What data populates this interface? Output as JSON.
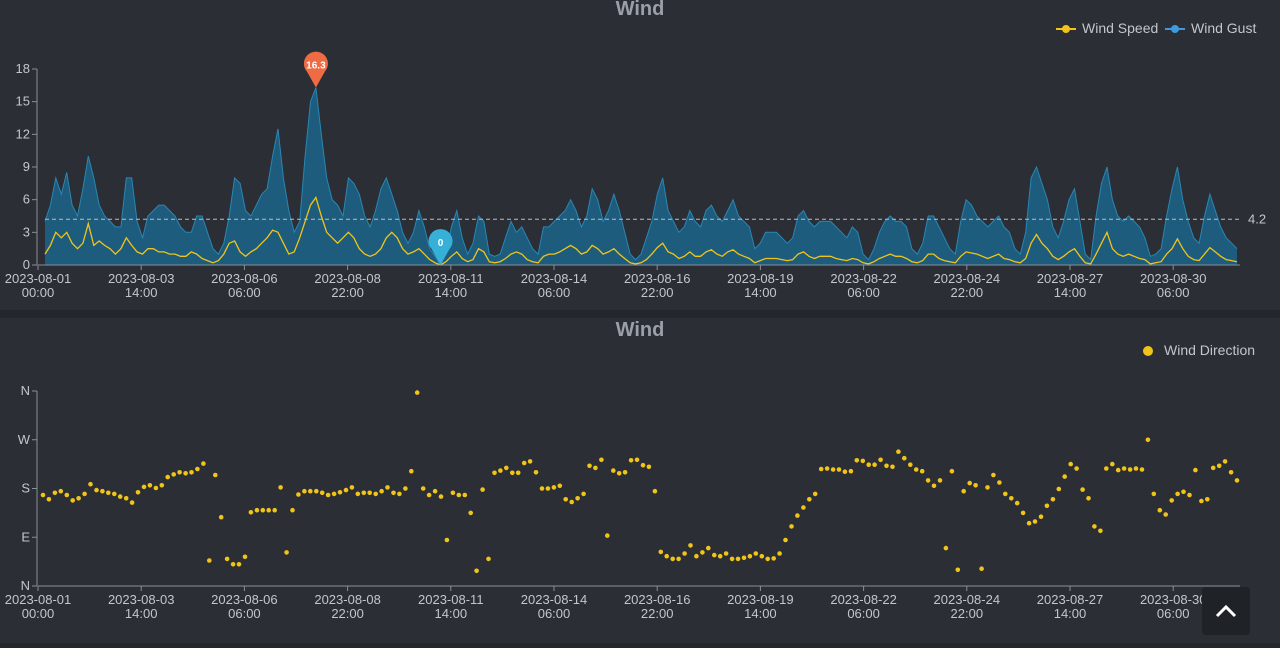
{
  "chart_data": [
    {
      "type": "area",
      "title": "Wind",
      "legend": [
        "Wind Speed",
        "Wind Gust"
      ],
      "legend_placement": "top-right",
      "ylim": [
        0,
        18
      ],
      "yticks": [
        0,
        3,
        6,
        9,
        12,
        15,
        18
      ],
      "xticks": [
        [
          "2023-08-01",
          "00:00"
        ],
        [
          "2023-08-03",
          "14:00"
        ],
        [
          "2023-08-06",
          "06:00"
        ],
        [
          "2023-08-08",
          "22:00"
        ],
        [
          "2023-08-11",
          "14:00"
        ],
        [
          "2023-08-14",
          "06:00"
        ],
        [
          "2023-08-16",
          "22:00"
        ],
        [
          "2023-08-19",
          "14:00"
        ],
        [
          "2023-08-22",
          "06:00"
        ],
        [
          "2023-08-24",
          "22:00"
        ],
        [
          "2023-08-27",
          "14:00"
        ],
        [
          "2023-08-30",
          "06:00"
        ]
      ],
      "series": [
        {
          "name": "Wind Gust",
          "color": "#2e86c1",
          "values": [
            4,
            5.5,
            8,
            6.5,
            8.5,
            5.5,
            4.5,
            7,
            10,
            8,
            5.5,
            4.5,
            4,
            3.5,
            3.5,
            8,
            8,
            4,
            2.5,
            4.5,
            5,
            5.5,
            5.5,
            5,
            4.5,
            3.5,
            3,
            3,
            4.5,
            4.5,
            3,
            1.5,
            1,
            2,
            4.5,
            8,
            7.5,
            5,
            4.5,
            5.5,
            6.5,
            7,
            10,
            12.5,
            8,
            5,
            3,
            4,
            10,
            15,
            16.3,
            12,
            8,
            6,
            5.5,
            4.5,
            8,
            7.5,
            6.5,
            4.5,
            3.5,
            5,
            7,
            8,
            6.5,
            5,
            3,
            2,
            3,
            5,
            3.5,
            1.5,
            0.8,
            0,
            1,
            3.5,
            5,
            2.5,
            1,
            2,
            4.5,
            4,
            1,
            0.8,
            1,
            2.5,
            4,
            3,
            3.5,
            2.5,
            1.5,
            1,
            3.5,
            3.5,
            4,
            4.5,
            5,
            6,
            5,
            3.5,
            4.5,
            7,
            6,
            4,
            5,
            6.5,
            5,
            3,
            1,
            0.5,
            1,
            2.5,
            4,
            6.5,
            8,
            5,
            4,
            3,
            3.5,
            5,
            4,
            3.5,
            5,
            5.5,
            4.5,
            4,
            5,
            6,
            4.5,
            4,
            3.5,
            1.5,
            2,
            3,
            3,
            3,
            2.5,
            2,
            2.5,
            4.5,
            5,
            4,
            3.5,
            4,
            4,
            4,
            3.5,
            3,
            2.5,
            3.5,
            3,
            1,
            0.5,
            1.5,
            3,
            4,
            4.5,
            4,
            4,
            3.5,
            1.5,
            1,
            2,
            4.5,
            4.5,
            3.5,
            2.5,
            1.5,
            1,
            4,
            6,
            5.5,
            4.5,
            4,
            3.5,
            4,
            4.5,
            3.5,
            3,
            1.5,
            1,
            3,
            8,
            9,
            7.5,
            6,
            3.5,
            2.5,
            4,
            6,
            7,
            4,
            1,
            0.5,
            4.5,
            7.5,
            9,
            6,
            4.5,
            4,
            4.5,
            4,
            3.5,
            2.5,
            0.8,
            1,
            1.5,
            4.5,
            7,
            9,
            6,
            4,
            2.5,
            2,
            4.5,
            6.5,
            5,
            3.5,
            2.5,
            2,
            1.5
          ]
        },
        {
          "name": "Wind Speed",
          "color": "#f0c419",
          "values": [
            1,
            1.8,
            3,
            2.5,
            3,
            2,
            1.5,
            2,
            3.8,
            1.8,
            2.2,
            1.8,
            1.5,
            1,
            1.5,
            2.5,
            1.8,
            1.2,
            1,
            1.5,
            1.5,
            1.2,
            1.2,
            1,
            1,
            0.8,
            0.8,
            1.2,
            1,
            0.6,
            0.4,
            0.2,
            0.4,
            1,
            2,
            2.2,
            1.2,
            0.8,
            1.2,
            1.5,
            2,
            2.5,
            3.2,
            3,
            2,
            1,
            1.2,
            2.5,
            4,
            5.5,
            6.2,
            4.5,
            3,
            2.5,
            2,
            2.5,
            3,
            2.5,
            1.5,
            1,
            0.8,
            1,
            1.5,
            2.5,
            3,
            2.5,
            1.5,
            1,
            1.2,
            1.5,
            1,
            0.5,
            0.2,
            0,
            0.3,
            0.8,
            1.2,
            0.6,
            0.3,
            0.5,
            1.5,
            1.2,
            0.3,
            0.2,
            0.3,
            0.6,
            1,
            1.2,
            1,
            0.5,
            0.3,
            0.2,
            0.8,
            1,
            1,
            1.2,
            1.5,
            1.8,
            1.5,
            1,
            1.2,
            1.8,
            1.5,
            1,
            1.2,
            1.5,
            1,
            0.6,
            0.2,
            0.1,
            0.2,
            0.5,
            1,
            1.6,
            2,
            1.2,
            1,
            0.6,
            0.8,
            1.2,
            0.8,
            0.8,
            1.2,
            1.4,
            1,
            0.8,
            1.2,
            1.4,
            1,
            0.8,
            0.6,
            0.2,
            0.4,
            0.6,
            0.6,
            0.6,
            0.5,
            0.4,
            0.5,
            1,
            1.2,
            0.8,
            0.6,
            0.8,
            0.8,
            0.8,
            0.6,
            0.5,
            0.4,
            0.6,
            0.5,
            0.2,
            0.1,
            0.3,
            0.6,
            0.8,
            1,
            0.8,
            0.8,
            0.6,
            0.3,
            0.2,
            0.4,
            1,
            1,
            0.6,
            0.4,
            0.3,
            0.2,
            0.8,
            1.2,
            1.1,
            1,
            0.8,
            0.6,
            0.8,
            1,
            0.6,
            0.5,
            0.3,
            0.2,
            0.6,
            2,
            2.8,
            2,
            1.5,
            0.8,
            0.5,
            0.8,
            1.2,
            1.5,
            0.8,
            0.2,
            0.1,
            1,
            2,
            3,
            1.5,
            1,
            0.8,
            1,
            0.8,
            0.6,
            0.5,
            0.1,
            0.2,
            0.3,
            1,
            1.5,
            2.4,
            1.5,
            0.8,
            0.5,
            0.4,
            1,
            1.6,
            1.2,
            0.8,
            0.5,
            0.4,
            0.3
          ]
        }
      ],
      "average_line": {
        "value": 4.2,
        "label": "4.2"
      },
      "markers": [
        {
          "label": "16.3",
          "value": 16.3,
          "index": 50,
          "color": "#ee6b44",
          "kind": "max"
        },
        {
          "label": "0",
          "value": 0,
          "index": 73,
          "color": "#36b0d6",
          "kind": "min"
        }
      ]
    },
    {
      "type": "scatter",
      "title": "Wind",
      "legend": [
        "Wind Direction"
      ],
      "legend_placement": "top-right",
      "yticks": [
        "N",
        "E",
        "S",
        "W",
        "N"
      ],
      "ylim": [
        0,
        360
      ],
      "xticks": [
        [
          "2023-08-01",
          "00:00"
        ],
        [
          "2023-08-03",
          "14:00"
        ],
        [
          "2023-08-06",
          "06:00"
        ],
        [
          "2023-08-08",
          "22:00"
        ],
        [
          "2023-08-11",
          "14:00"
        ],
        [
          "2023-08-14",
          "06:00"
        ],
        [
          "2023-08-16",
          "22:00"
        ],
        [
          "2023-08-19",
          "14:00"
        ],
        [
          "2023-08-22",
          "06:00"
        ],
        [
          "2023-08-24",
          "22:00"
        ],
        [
          "2023-08-27",
          "14:00"
        ],
        [
          "2023-08-30",
          "06:00"
        ]
      ],
      "series": [
        {
          "name": "Wind Direction",
          "color": "#f0c419",
          "values": [
            168,
            160,
            172,
            175,
            168,
            158,
            162,
            170,
            188,
            177,
            175,
            172,
            170,
            165,
            162,
            154,
            173,
            183,
            186,
            181,
            186,
            201,
            206,
            210,
            208,
            210,
            216,
            226,
            47,
            205,
            127,
            50,
            40,
            40,
            54,
            136,
            140,
            140,
            140,
            140,
            182,
            62,
            140,
            169,
            175,
            175,
            175,
            172,
            168,
            170,
            173,
            177,
            182,
            170,
            172,
            172,
            170,
            175,
            182,
            172,
            170,
            180,
            212,
            357,
            180,
            168,
            175,
            165,
            85,
            172,
            168,
            168,
            135,
            28,
            178,
            50,
            209,
            213,
            218,
            209,
            209,
            227,
            230,
            210,
            180,
            180,
            182,
            185,
            160,
            155,
            162,
            170,
            222,
            218,
            233,
            93,
            213,
            208,
            210,
            232,
            233,
            223,
            220,
            175,
            63,
            55,
            50,
            50,
            60,
            75,
            55,
            62,
            70,
            57,
            55,
            60,
            50,
            50,
            52,
            55,
            60,
            55,
            50,
            51,
            60,
            85,
            110,
            130,
            145,
            160,
            170,
            216,
            217,
            215,
            215,
            211,
            212,
            232,
            231,
            224,
            224,
            233,
            222,
            220,
            248,
            236,
            224,
            215,
            212,
            195,
            185,
            195,
            70,
            212,
            30,
            175,
            190,
            186,
            32,
            182,
            205,
            191,
            170,
            162,
            153,
            135,
            116,
            119,
            128,
            148,
            160,
            179,
            202,
            225,
            217,
            178,
            162,
            110,
            102,
            217,
            225,
            214,
            217,
            215,
            217,
            215,
            270,
            170,
            140,
            132,
            158,
            170,
            174,
            168,
            214,
            157,
            160,
            218,
            222,
            230,
            210,
            195
          ]
        }
      ]
    }
  ]
}
